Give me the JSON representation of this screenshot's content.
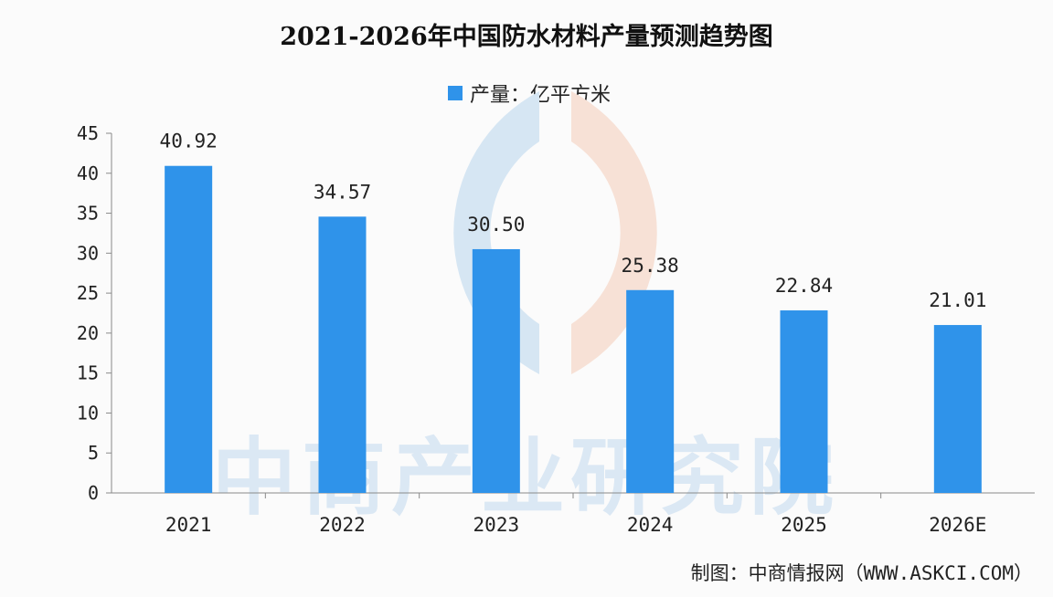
{
  "title": "2021-2026年中国防水材料产量预测趋势图",
  "watermark_text": "中商产业研究院",
  "footer": {
    "label": "制图：",
    "text": "中商情报网（WWW.ASKCI.COM）"
  },
  "colors": {
    "bar": "#2f93ea",
    "logo_blue": "#d6e6f3",
    "logo_orange": "#f7e1d6",
    "watermark": "#dbe8f4"
  },
  "chart_data": {
    "type": "bar",
    "categories": [
      "2021",
      "2022",
      "2023",
      "2024",
      "2025",
      "2026E"
    ],
    "series": [
      {
        "name": "产量：亿平方米",
        "values": [
          40.92,
          34.57,
          30.5,
          25.38,
          22.84,
          21.01
        ],
        "labels": [
          "40.92",
          "34.57",
          "30.50",
          "25.38",
          "22.84",
          "21.01"
        ]
      }
    ],
    "ylim": [
      0,
      45
    ],
    "yticks": [
      0,
      5,
      10,
      15,
      20,
      25,
      30,
      35,
      40,
      45
    ],
    "legend_position": "top-center",
    "grid": false
  }
}
